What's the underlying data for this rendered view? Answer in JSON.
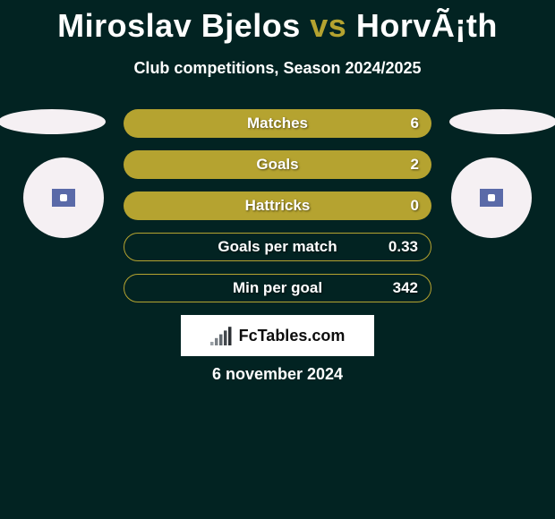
{
  "background_color": "#022322",
  "text_color": "#ffffff",
  "header": {
    "player1": "Miroslav Bjelos",
    "vs": "vs",
    "player2": "HorvÃ¡th",
    "accent_color": "#b5a330",
    "title_fontsize": 36
  },
  "subtitle": "Club competitions, Season 2024/2025",
  "subtitle_fontsize": 18,
  "ellipse_color": "#f5f0f3",
  "badge_color": "#f5f0f3",
  "badge_inner_color": "#5a6aa8",
  "bars": {
    "fill_color": "#b5a330",
    "outline_mode_border": "1px solid #b5a330",
    "text_shadow": "1px 1px 2px rgba(0,0,0,0.55)",
    "label_fontsize": 17,
    "items": [
      {
        "label": "Matches",
        "value": "6",
        "filled": true
      },
      {
        "label": "Goals",
        "value": "2",
        "filled": true
      },
      {
        "label": "Hattricks",
        "value": "0",
        "filled": true
      },
      {
        "label": "Goals per match",
        "value": "0.33",
        "filled": false
      },
      {
        "label": "Min per goal",
        "value": "342",
        "filled": false
      }
    ]
  },
  "sitecard": {
    "background": "#ffffff",
    "text": "FcTables.com",
    "text_color": "#0d0d0d",
    "logo_bar_colors": [
      "#9aa0a6",
      "#7b8187",
      "#5f666c",
      "#44494e",
      "#2b2f33"
    ]
  },
  "date": "6 november 2024"
}
